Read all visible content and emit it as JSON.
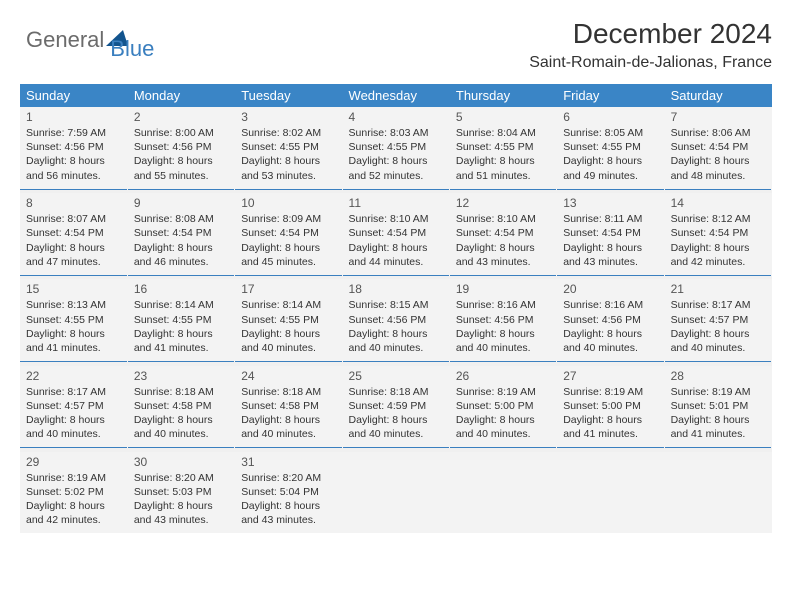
{
  "brand": {
    "part1": "General",
    "part2": "Blue",
    "accent_color": "#3a85c6",
    "tri_color": "#12548e"
  },
  "title": "December 2024",
  "location": "Saint-Romain-de-Jalionas, France",
  "colors": {
    "header_bg": "#3a85c6",
    "header_text": "#ffffff",
    "cell_bg": "#f3f3f3",
    "sep_border": "#3a7fbf",
    "body_text": "#333333"
  },
  "days_of_week": [
    "Sunday",
    "Monday",
    "Tuesday",
    "Wednesday",
    "Thursday",
    "Friday",
    "Saturday"
  ],
  "weeks": [
    [
      {
        "n": "1",
        "sunrise": "7:59 AM",
        "sunset": "4:56 PM",
        "daylight": "8 hours and 56 minutes."
      },
      {
        "n": "2",
        "sunrise": "8:00 AM",
        "sunset": "4:56 PM",
        "daylight": "8 hours and 55 minutes."
      },
      {
        "n": "3",
        "sunrise": "8:02 AM",
        "sunset": "4:55 PM",
        "daylight": "8 hours and 53 minutes."
      },
      {
        "n": "4",
        "sunrise": "8:03 AM",
        "sunset": "4:55 PM",
        "daylight": "8 hours and 52 minutes."
      },
      {
        "n": "5",
        "sunrise": "8:04 AM",
        "sunset": "4:55 PM",
        "daylight": "8 hours and 51 minutes."
      },
      {
        "n": "6",
        "sunrise": "8:05 AM",
        "sunset": "4:55 PM",
        "daylight": "8 hours and 49 minutes."
      },
      {
        "n": "7",
        "sunrise": "8:06 AM",
        "sunset": "4:54 PM",
        "daylight": "8 hours and 48 minutes."
      }
    ],
    [
      {
        "n": "8",
        "sunrise": "8:07 AM",
        "sunset": "4:54 PM",
        "daylight": "8 hours and 47 minutes."
      },
      {
        "n": "9",
        "sunrise": "8:08 AM",
        "sunset": "4:54 PM",
        "daylight": "8 hours and 46 minutes."
      },
      {
        "n": "10",
        "sunrise": "8:09 AM",
        "sunset": "4:54 PM",
        "daylight": "8 hours and 45 minutes."
      },
      {
        "n": "11",
        "sunrise": "8:10 AM",
        "sunset": "4:54 PM",
        "daylight": "8 hours and 44 minutes."
      },
      {
        "n": "12",
        "sunrise": "8:10 AM",
        "sunset": "4:54 PM",
        "daylight": "8 hours and 43 minutes."
      },
      {
        "n": "13",
        "sunrise": "8:11 AM",
        "sunset": "4:54 PM",
        "daylight": "8 hours and 43 minutes."
      },
      {
        "n": "14",
        "sunrise": "8:12 AM",
        "sunset": "4:54 PM",
        "daylight": "8 hours and 42 minutes."
      }
    ],
    [
      {
        "n": "15",
        "sunrise": "8:13 AM",
        "sunset": "4:55 PM",
        "daylight": "8 hours and 41 minutes."
      },
      {
        "n": "16",
        "sunrise": "8:14 AM",
        "sunset": "4:55 PM",
        "daylight": "8 hours and 41 minutes."
      },
      {
        "n": "17",
        "sunrise": "8:14 AM",
        "sunset": "4:55 PM",
        "daylight": "8 hours and 40 minutes."
      },
      {
        "n": "18",
        "sunrise": "8:15 AM",
        "sunset": "4:56 PM",
        "daylight": "8 hours and 40 minutes."
      },
      {
        "n": "19",
        "sunrise": "8:16 AM",
        "sunset": "4:56 PM",
        "daylight": "8 hours and 40 minutes."
      },
      {
        "n": "20",
        "sunrise": "8:16 AM",
        "sunset": "4:56 PM",
        "daylight": "8 hours and 40 minutes."
      },
      {
        "n": "21",
        "sunrise": "8:17 AM",
        "sunset": "4:57 PM",
        "daylight": "8 hours and 40 minutes."
      }
    ],
    [
      {
        "n": "22",
        "sunrise": "8:17 AM",
        "sunset": "4:57 PM",
        "daylight": "8 hours and 40 minutes."
      },
      {
        "n": "23",
        "sunrise": "8:18 AM",
        "sunset": "4:58 PM",
        "daylight": "8 hours and 40 minutes."
      },
      {
        "n": "24",
        "sunrise": "8:18 AM",
        "sunset": "4:58 PM",
        "daylight": "8 hours and 40 minutes."
      },
      {
        "n": "25",
        "sunrise": "8:18 AM",
        "sunset": "4:59 PM",
        "daylight": "8 hours and 40 minutes."
      },
      {
        "n": "26",
        "sunrise": "8:19 AM",
        "sunset": "5:00 PM",
        "daylight": "8 hours and 40 minutes."
      },
      {
        "n": "27",
        "sunrise": "8:19 AM",
        "sunset": "5:00 PM",
        "daylight": "8 hours and 41 minutes."
      },
      {
        "n": "28",
        "sunrise": "8:19 AM",
        "sunset": "5:01 PM",
        "daylight": "8 hours and 41 minutes."
      }
    ],
    [
      {
        "n": "29",
        "sunrise": "8:19 AM",
        "sunset": "5:02 PM",
        "daylight": "8 hours and 42 minutes."
      },
      {
        "n": "30",
        "sunrise": "8:20 AM",
        "sunset": "5:03 PM",
        "daylight": "8 hours and 43 minutes."
      },
      {
        "n": "31",
        "sunrise": "8:20 AM",
        "sunset": "5:04 PM",
        "daylight": "8 hours and 43 minutes."
      },
      null,
      null,
      null,
      null
    ]
  ],
  "labels": {
    "sunrise": "Sunrise:",
    "sunset": "Sunset:",
    "daylight": "Daylight:"
  }
}
